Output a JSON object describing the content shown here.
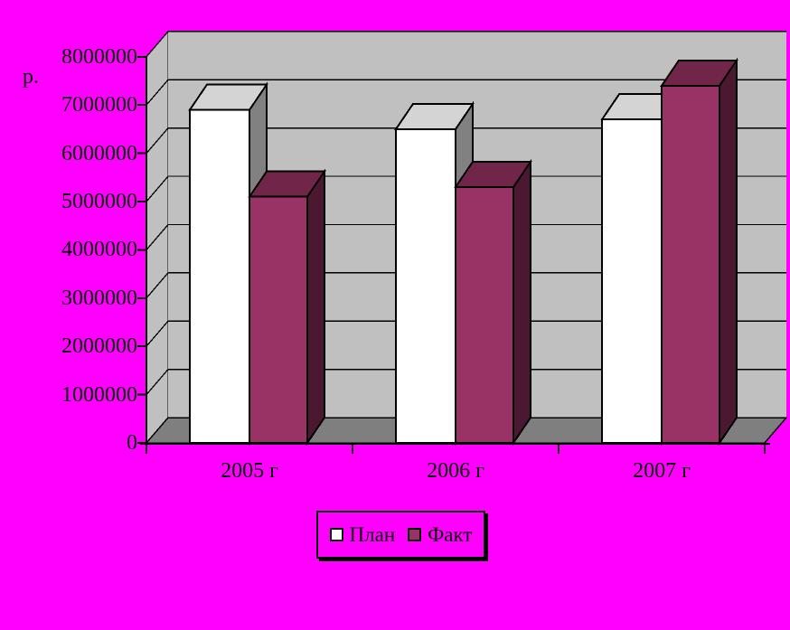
{
  "background_color": "#ff00ff",
  "chart_data": {
    "type": "bar",
    "projection": "3d-clustered-column",
    "title": "",
    "xlabel": "",
    "ylabel": "р.",
    "categories": [
      "2005 г",
      "2006 г",
      "2007 г"
    ],
    "series": [
      {
        "key": "plan",
        "name": "План",
        "values": [
          6900000,
          6500000,
          6700000
        ],
        "front_color": "#ffffff",
        "top_color": "#d4d4d4",
        "side_color": "#818181"
      },
      {
        "key": "fakt",
        "name": "Факт",
        "values": [
          5100000,
          5300000,
          7400000
        ],
        "front_color": "#993366",
        "top_color": "#702549",
        "side_color": "#4a1830"
      }
    ],
    "ylim": [
      0,
      8000000
    ],
    "ytick_step": 1000000,
    "ytick_labels": [
      "0",
      "1000000",
      "2000000",
      "3000000",
      "4000000",
      "5000000",
      "6000000",
      "7000000",
      "8000000"
    ],
    "grid": true,
    "legend_position": "bottom",
    "wall_color": "#c0c0c0",
    "floor_color": "#7f7f7f",
    "outline_color": "#000000"
  },
  "legend": {
    "items": [
      {
        "key": "plan",
        "label": "План",
        "color": "#ffffff"
      },
      {
        "key": "fakt",
        "label": "Факт",
        "color": "#993366"
      }
    ]
  }
}
